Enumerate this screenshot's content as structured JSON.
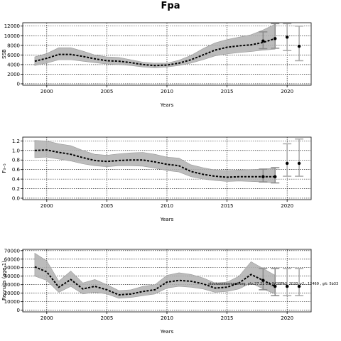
{
  "title": "Fpa",
  "annotation": "stockassessment.org, ple.27.21-23_WGBFAS_2020_v2 : 12469 , git: 5b33",
  "panels": [
    {
      "id": "ssb",
      "ylabel": "SSB",
      "xlabel": "Years",
      "xticks": [
        2000,
        2005,
        2010,
        2015,
        2020
      ],
      "xlim": [
        1998,
        2022
      ],
      "yticks": [
        0,
        2000,
        4000,
        6000,
        8000,
        10000,
        12000
      ],
      "ytick_labels": [
        "0",
        "2000",
        "4000",
        "6000",
        "8000",
        "10000",
        "12000"
      ],
      "ylim": [
        -300,
        12700
      ]
    },
    {
      "id": "fbar",
      "ylabel": "F₃₋₅",
      "xlabel": "Years",
      "xticks": [
        2000,
        2005,
        2010,
        2015,
        2020
      ],
      "xlim": [
        1998,
        2022
      ],
      "yticks": [
        0,
        0.2,
        0.4,
        0.6,
        0.8,
        1.0,
        1.2
      ],
      "ytick_labels": [
        "0.0",
        "0.2",
        "0.4",
        "0.6",
        "0.8",
        "1.0",
        "1.2"
      ],
      "ylim": [
        -0.03,
        1.28
      ]
    },
    {
      "id": "rec",
      "ylabel": "Recruits (age 1)",
      "xlabel": "Years",
      "xticks": [
        2000,
        2005,
        2010,
        2015,
        2020
      ],
      "xlim": [
        1998,
        2022
      ],
      "yticks": [
        0,
        10000,
        20000,
        30000,
        40000,
        50000,
        60000,
        70000
      ],
      "ytick_labels": [
        "0",
        "10000",
        "20000",
        "30000",
        "40000",
        "50000",
        "60000",
        "70000"
      ],
      "ylim": [
        -2000,
        71500
      ]
    }
  ],
  "chart_data": [
    {
      "type": "line",
      "title": "Fpa",
      "xlabel": "Years",
      "ylabel": "SSB",
      "x": [
        1999,
        2000,
        2001,
        2002,
        2003,
        2004,
        2005,
        2006,
        2007,
        2008,
        2009,
        2010,
        2011,
        2012,
        2013,
        2014,
        2015,
        2016,
        2017,
        2018,
        2019
      ],
      "series": [
        {
          "role": "estimate",
          "values": [
            4700,
            5300,
            6100,
            6100,
            5700,
            5200,
            4800,
            4700,
            4400,
            4000,
            3800,
            3900,
            4300,
            5000,
            6000,
            7000,
            7600,
            7900,
            8100,
            8600,
            9400
          ]
        },
        {
          "role": "upper",
          "values": [
            5600,
            6300,
            7500,
            7500,
            6800,
            6000,
            5600,
            5500,
            5000,
            4500,
            4300,
            4300,
            4900,
            5900,
            7300,
            8500,
            9200,
            9700,
            10200,
            11200,
            12400
          ]
        },
        {
          "role": "lower",
          "values": [
            3800,
            4300,
            5000,
            5000,
            4700,
            4400,
            4100,
            4000,
            3800,
            3500,
            3300,
            3500,
            3800,
            4300,
            5000,
            5800,
            6200,
            6500,
            6700,
            7000,
            7200
          ]
        }
      ],
      "forecast": [
        {
          "x": 2018,
          "value": 8900,
          "lower": 7300,
          "upper": 10800
        },
        {
          "x": 2019,
          "value": 9400,
          "lower": 7400,
          "upper": 12500
        },
        {
          "x": 2020,
          "value": 9700,
          "lower": 6900,
          "upper": 12500
        },
        {
          "x": 2021,
          "value": 7800,
          "lower": 4800,
          "upper": 12000
        }
      ],
      "grid": true,
      "ylim": [
        -300,
        12700
      ]
    },
    {
      "type": "line",
      "xlabel": "Years",
      "ylabel": "F₃₋₅",
      "x": [
        1999,
        2000,
        2001,
        2002,
        2003,
        2004,
        2005,
        2006,
        2007,
        2008,
        2009,
        2010,
        2011,
        2012,
        2013,
        2014,
        2015,
        2016,
        2017,
        2018,
        2019
      ],
      "series": [
        {
          "role": "estimate",
          "values": [
            1.0,
            1.01,
            0.96,
            0.92,
            0.85,
            0.79,
            0.77,
            0.79,
            0.8,
            0.8,
            0.76,
            0.71,
            0.68,
            0.56,
            0.5,
            0.46,
            0.44,
            0.45,
            0.45,
            0.45,
            0.45
          ]
        },
        {
          "role": "upper",
          "values": [
            1.21,
            1.2,
            1.14,
            1.1,
            1.0,
            0.92,
            0.9,
            0.93,
            0.95,
            0.96,
            0.92,
            0.86,
            0.84,
            0.7,
            0.64,
            0.59,
            0.58,
            0.59,
            0.6,
            0.61,
            0.63
          ]
        },
        {
          "role": "lower",
          "values": [
            0.85,
            0.86,
            0.82,
            0.78,
            0.72,
            0.68,
            0.66,
            0.68,
            0.68,
            0.67,
            0.63,
            0.58,
            0.55,
            0.45,
            0.4,
            0.37,
            0.35,
            0.36,
            0.35,
            0.34,
            0.32
          ]
        }
      ],
      "forecast": [
        {
          "x": 2018,
          "value": 0.45,
          "lower": 0.34,
          "upper": 0.61
        },
        {
          "x": 2019,
          "value": 0.45,
          "lower": 0.32,
          "upper": 0.64
        },
        {
          "x": 2020,
          "value": 0.73,
          "lower": 0.46,
          "upper": 1.14
        },
        {
          "x": 2021,
          "value": 0.73,
          "lower": 0.46,
          "upper": 1.24
        }
      ],
      "grid": true,
      "ylim": [
        -0.03,
        1.28
      ]
    },
    {
      "type": "line",
      "xlabel": "Years",
      "ylabel": "Recruits (age 1)",
      "x": [
        1999,
        2000,
        2001,
        2002,
        2003,
        2004,
        2005,
        2006,
        2007,
        2008,
        2009,
        2010,
        2011,
        2012,
        2013,
        2014,
        2015,
        2016,
        2017,
        2018,
        2019
      ],
      "series": [
        {
          "role": "estimate",
          "values": [
            51000,
            45000,
            27000,
            36000,
            25000,
            28000,
            24000,
            18000,
            19000,
            22000,
            24000,
            33000,
            35000,
            34000,
            31000,
            26000,
            27000,
            32000,
            42000,
            35000,
            28000
          ]
        },
        {
          "role": "upper",
          "values": [
            67000,
            58000,
            34000,
            46000,
            32000,
            36000,
            30000,
            23000,
            24000,
            28000,
            30000,
            41000,
            44000,
            42000,
            38000,
            32000,
            33000,
            40000,
            57000,
            49000,
            41000
          ]
        },
        {
          "role": "lower",
          "values": [
            40000,
            35000,
            21000,
            28000,
            19000,
            21000,
            19000,
            14000,
            15000,
            17000,
            19000,
            26000,
            28000,
            27000,
            25000,
            21000,
            22000,
            25000,
            32000,
            25000,
            19000
          ]
        }
      ],
      "forecast": [
        {
          "x": 2018,
          "value": 35000,
          "lower": 24000,
          "upper": 49000
        },
        {
          "x": 2019,
          "value": 28000,
          "lower": 17000,
          "upper": 49000
        },
        {
          "x": 2020,
          "value": 28000,
          "lower": 17000,
          "upper": 49000
        },
        {
          "x": 2021,
          "value": 28000,
          "lower": 17000,
          "upper": 49000
        }
      ],
      "grid": true,
      "ylim": [
        -2000,
        71500
      ]
    }
  ]
}
